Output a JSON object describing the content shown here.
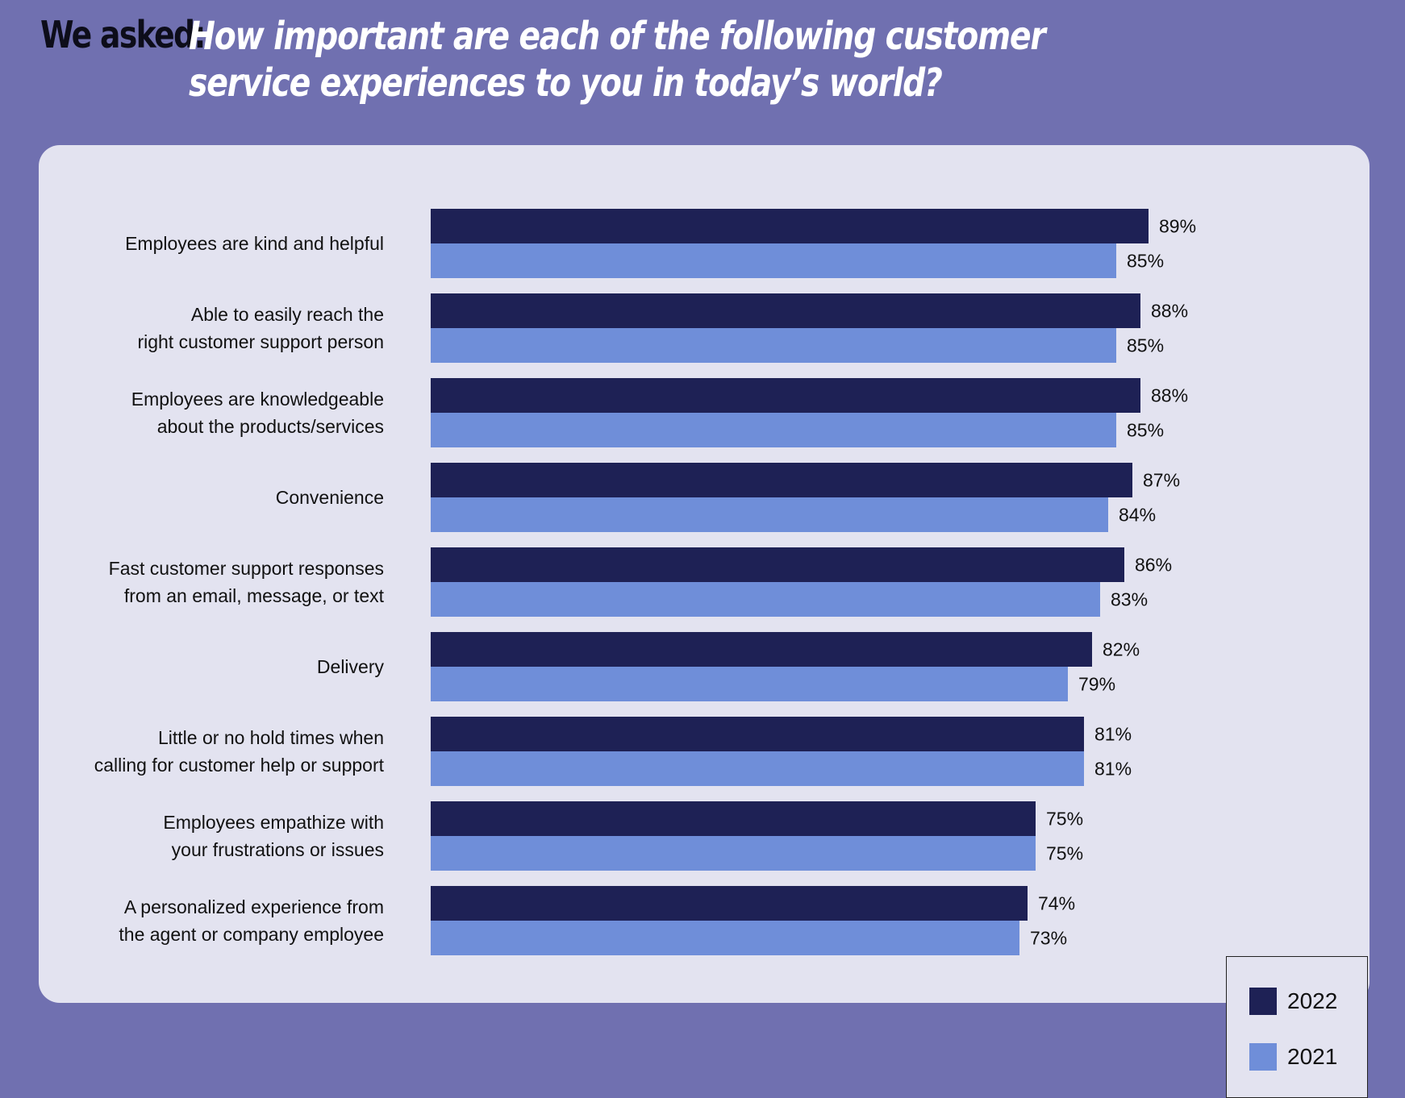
{
  "header": {
    "lead": "We asked:",
    "question": "How important are each of the following customer service experiences to you in today’s world?"
  },
  "colors": {
    "series_2022": "#1e2155",
    "series_2021": "#6f8ed9"
  },
  "chart_data": {
    "type": "bar",
    "orientation": "horizontal",
    "title": "How important are each of the following customer service experiences to you in today’s world?",
    "categories": [
      "Employees are kind and helpful",
      "Able to easily reach the\nright customer support person",
      "Employees are knowledgeable\nabout the products/services",
      "Convenience",
      "Fast customer support responses\nfrom an email, message, or text",
      "Delivery",
      "Little or no hold times when\ncalling for customer help or support",
      "Employees empathize with\nyour frustrations or issues",
      "A personalized experience from\nthe agent or company employee"
    ],
    "series": [
      {
        "name": "2022",
        "values": [
          89,
          88,
          88,
          87,
          86,
          82,
          81,
          75,
          74
        ],
        "labels": [
          "89%",
          "88%",
          "88%",
          "87%",
          "86%",
          "82%",
          "81%",
          "75%",
          "74%"
        ]
      },
      {
        "name": "2021",
        "values": [
          85,
          85,
          85,
          84,
          83,
          79,
          81,
          75,
          73
        ],
        "labels": [
          "85%",
          "85%",
          "85%",
          "84%",
          "83%",
          "79%",
          "81%",
          "75%",
          "73%"
        ]
      }
    ],
    "xlim": [
      0,
      100
    ],
    "grid": false,
    "legend": "bottom-right"
  }
}
